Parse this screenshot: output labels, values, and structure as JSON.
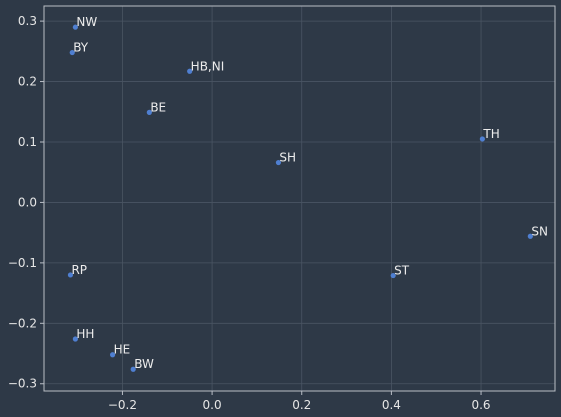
{
  "chart_data": {
    "type": "scatter",
    "title": "",
    "xlabel": "",
    "ylabel": "",
    "xlim": [
      -0.375,
      0.765
    ],
    "ylim": [
      -0.312,
      0.325
    ],
    "grid": true,
    "legend": "none",
    "x_ticks": [
      -0.2,
      0.0,
      0.2,
      0.4,
      0.6
    ],
    "y_ticks": [
      -0.3,
      -0.2,
      -0.1,
      0.0,
      0.1,
      0.2,
      0.3
    ],
    "x_tick_labels": [
      "−0.2",
      "0.0",
      "0.2",
      "0.4",
      "0.6"
    ],
    "y_tick_labels": [
      "−0.3",
      "−0.2",
      "−0.1",
      "0.0",
      "0.1",
      "0.2",
      "0.3"
    ],
    "marker_color": "#4f7fd1",
    "points": [
      {
        "label": "NW",
        "x": -0.305,
        "y": 0.29
      },
      {
        "label": "BY",
        "x": -0.312,
        "y": 0.248
      },
      {
        "label": "HB,NI",
        "x": -0.05,
        "y": 0.217
      },
      {
        "label": "BE",
        "x": -0.14,
        "y": 0.149
      },
      {
        "label": "TH",
        "x": 0.603,
        "y": 0.105
      },
      {
        "label": "SH",
        "x": 0.148,
        "y": 0.066
      },
      {
        "label": "SN",
        "x": 0.71,
        "y": -0.056
      },
      {
        "label": "RP",
        "x": -0.316,
        "y": -0.12
      },
      {
        "label": "ST",
        "x": 0.404,
        "y": -0.121
      },
      {
        "label": "HH",
        "x": -0.305,
        "y": -0.226
      },
      {
        "label": "HE",
        "x": -0.222,
        "y": -0.252
      },
      {
        "label": "BW",
        "x": -0.176,
        "y": -0.276
      }
    ]
  }
}
